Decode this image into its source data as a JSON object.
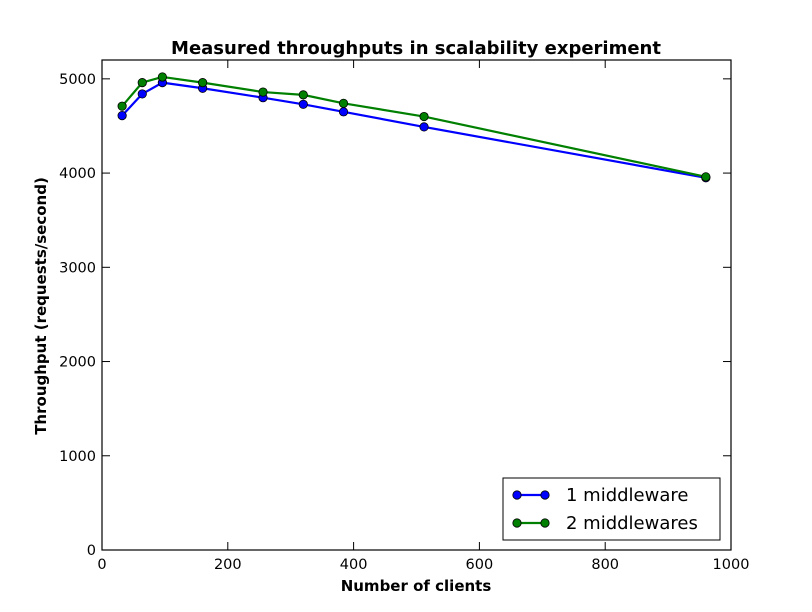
{
  "chart_data": {
    "type": "line",
    "title": "Measured throughputs in scalability experiment",
    "xlabel": "Number of clients",
    "ylabel": "Throughput (requests/second)",
    "xlim": [
      0,
      1000
    ],
    "ylim": [
      0,
      5200
    ],
    "xticks": [
      0,
      200,
      400,
      600,
      800,
      1000
    ],
    "yticks": [
      0,
      1000,
      2000,
      3000,
      4000,
      5000
    ],
    "grid": false,
    "legend_position": "lower-right",
    "series": [
      {
        "name": "1 middleware",
        "color": "#0000ff",
        "marker": "circle",
        "x": [
          32,
          64,
          96,
          160,
          256,
          320,
          384,
          512,
          960
        ],
        "y": [
          4610,
          4840,
          4960,
          4900,
          4800,
          4730,
          4650,
          4490,
          3950
        ]
      },
      {
        "name": "2 middlewares",
        "color": "#008000",
        "marker": "circle",
        "x": [
          32,
          64,
          96,
          160,
          256,
          320,
          384,
          512,
          960
        ],
        "y": [
          4710,
          4960,
          5020,
          4960,
          4860,
          4830,
          4740,
          4600,
          3960
        ]
      }
    ]
  }
}
